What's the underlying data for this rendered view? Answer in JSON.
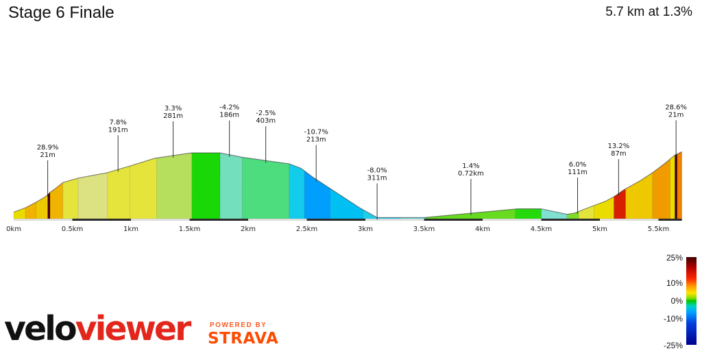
{
  "header": {
    "title": "Stage 6 Finale",
    "summary": "5.7 km at 1.3%"
  },
  "branding": {
    "logo_part1": "velo",
    "logo_part2": "viewer",
    "powered_by": "POWERED BY",
    "strava": "STRAVA"
  },
  "legend": {
    "labels": [
      "25%",
      "10%",
      "0%",
      "-10%",
      "-25%"
    ]
  },
  "chart_data": {
    "type": "area",
    "title": "Stage 6 Finale",
    "xlabel": "",
    "ylabel": "",
    "x_unit": "km",
    "xlim": [
      0,
      5.7
    ],
    "x_ticks": [
      "0km",
      "0.5km",
      "1km",
      "1.5km",
      "2km",
      "2.5km",
      "3km",
      "3.5km",
      "4km",
      "4.5km",
      "5km",
      "5.5km"
    ],
    "x_tick_values": [
      0,
      0.5,
      1,
      1.5,
      2,
      2.5,
      3,
      3.5,
      4,
      4.5,
      5,
      5.5
    ],
    "profile": [
      [
        0.0,
        3
      ],
      [
        0.1,
        5
      ],
      [
        0.19,
        7.5
      ],
      [
        0.27,
        10
      ],
      [
        0.31,
        12
      ],
      [
        0.35,
        13.5
      ],
      [
        0.42,
        16.5
      ],
      [
        0.55,
        18.5
      ],
      [
        0.8,
        21
      ],
      [
        0.99,
        24
      ],
      [
        1.2,
        27.5
      ],
      [
        1.45,
        29.5
      ],
      [
        1.52,
        30
      ],
      [
        1.76,
        30
      ],
      [
        1.95,
        28
      ],
      [
        2.15,
        26.5
      ],
      [
        2.35,
        25
      ],
      [
        2.45,
        23
      ],
      [
        2.55,
        19
      ],
      [
        2.75,
        12
      ],
      [
        2.95,
        5
      ],
      [
        3.1,
        0.5
      ],
      [
        3.5,
        0.5
      ],
      [
        4.0,
        3
      ],
      [
        4.3,
        4.5
      ],
      [
        4.5,
        4.5
      ],
      [
        4.72,
        2
      ],
      [
        4.78,
        2.5
      ],
      [
        4.9,
        5
      ],
      [
        5.05,
        8
      ],
      [
        5.12,
        10
      ],
      [
        5.2,
        13
      ],
      [
        5.35,
        17.5
      ],
      [
        5.45,
        21
      ],
      [
        5.55,
        25
      ],
      [
        5.64,
        29
      ],
      [
        5.7,
        30.5
      ]
    ],
    "segments": [
      {
        "from": 0.0,
        "to": 0.1,
        "gradient": 2
      },
      {
        "from": 0.1,
        "to": 0.19,
        "gradient": 3
      },
      {
        "from": 0.19,
        "to": 0.29,
        "gradient": 2.5
      },
      {
        "from": 0.29,
        "to": 0.31,
        "gradient": 28.9
      },
      {
        "from": 0.31,
        "to": 0.42,
        "gradient": 3
      },
      {
        "from": 0.42,
        "to": 0.55,
        "gradient": 1.5
      },
      {
        "from": 0.55,
        "to": 0.8,
        "gradient": 1
      },
      {
        "from": 0.8,
        "to": 0.99,
        "gradient": 1.5
      },
      {
        "from": 0.99,
        "to": 1.22,
        "gradient": 1.5
      },
      {
        "from": 1.22,
        "to": 1.52,
        "gradient": 0.8
      },
      {
        "from": 1.52,
        "to": 1.76,
        "gradient": 0.1
      },
      {
        "from": 1.76,
        "to": 1.95,
        "gradient": -0.9
      },
      {
        "from": 1.95,
        "to": 2.35,
        "gradient": -0.6
      },
      {
        "from": 2.35,
        "to": 2.48,
        "gradient": -2.7
      },
      {
        "from": 2.48,
        "to": 2.7,
        "gradient": -5.5
      },
      {
        "from": 2.7,
        "to": 2.98,
        "gradient": -3.5
      },
      {
        "from": 2.98,
        "to": 3.3,
        "gradient": -2.5
      },
      {
        "from": 3.3,
        "to": 3.52,
        "gradient": -1.5
      },
      {
        "from": 3.52,
        "to": 4.28,
        "gradient": 0.4
      },
      {
        "from": 4.28,
        "to": 4.5,
        "gradient": 0.15
      },
      {
        "from": 4.5,
        "to": 4.72,
        "gradient": -1
      },
      {
        "from": 4.72,
        "to": 4.82,
        "gradient": 0.5
      },
      {
        "from": 4.82,
        "to": 4.95,
        "gradient": 1.5
      },
      {
        "from": 4.95,
        "to": 5.12,
        "gradient": 2
      },
      {
        "from": 5.12,
        "to": 5.22,
        "gradient": 13.2
      },
      {
        "from": 5.22,
        "to": 5.45,
        "gradient": 2.5
      },
      {
        "from": 5.45,
        "to": 5.6,
        "gradient": 4
      },
      {
        "from": 5.6,
        "to": 5.64,
        "gradient": 2
      },
      {
        "from": 5.64,
        "to": 5.66,
        "gradient": 28.6
      },
      {
        "from": 5.66,
        "to": 5.7,
        "gradient": 5
      }
    ],
    "annotations": [
      {
        "x": 0.29,
        "gradient": "28.9%",
        "length": "21m"
      },
      {
        "x": 0.89,
        "gradient": "7.8%",
        "length": "191m"
      },
      {
        "x": 1.36,
        "gradient": "3.3%",
        "length": "281m"
      },
      {
        "x": 1.84,
        "gradient": "-4.2%",
        "length": "186m"
      },
      {
        "x": 2.15,
        "gradient": "-2.5%",
        "length": "403m"
      },
      {
        "x": 2.58,
        "gradient": "-10.7%",
        "length": "213m"
      },
      {
        "x": 3.1,
        "gradient": "-8.0%",
        "length": "311m"
      },
      {
        "x": 3.9,
        "gradient": "1.4%",
        "length": "0.72km"
      },
      {
        "x": 4.81,
        "gradient": "6.0%",
        "length": "111m"
      },
      {
        "x": 5.16,
        "gradient": "13.2%",
        "length": "87m"
      },
      {
        "x": 5.65,
        "gradient": "28.6%",
        "length": "21m"
      }
    ],
    "colors": {
      "axis_stripe": "#2b2b2b",
      "axis_gap": "#dddddd"
    }
  }
}
